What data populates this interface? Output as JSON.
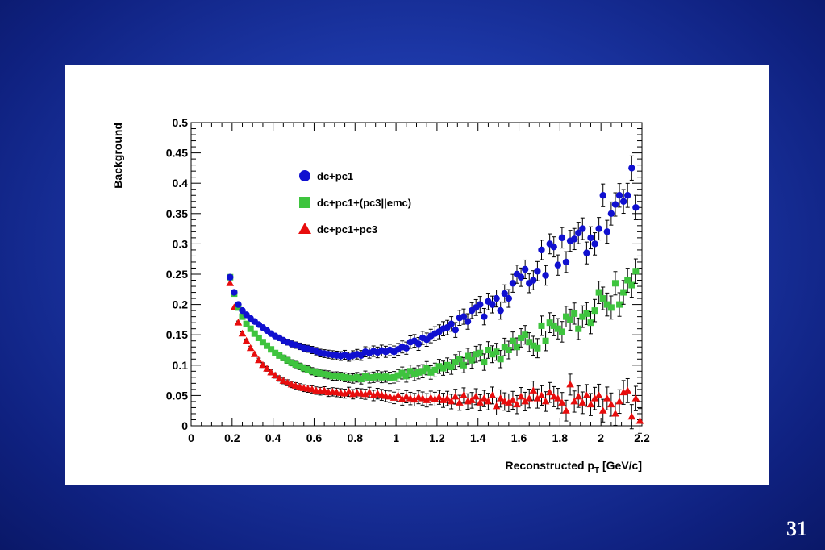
{
  "slide": {
    "page_number": "31"
  },
  "chart_data": {
    "type": "scatter",
    "xlabel": "Reconstructed p",
    "xlabel_sub": "T",
    "xlabel_unit": " [GeV/c]",
    "ylabel": "Background",
    "xlim": [
      0,
      2.2
    ],
    "ylim": [
      0,
      0.5
    ],
    "x_ticks": [
      "0",
      "0.2",
      "0.4",
      "0.6",
      "0.8",
      "1",
      "1.2",
      "1.4",
      "1.6",
      "1.8",
      "2",
      "2.2"
    ],
    "y_ticks": [
      "0",
      "0.05",
      "0.1",
      "0.15",
      "0.2",
      "0.25",
      "0.3",
      "0.35",
      "0.4",
      "0.45",
      "0.5"
    ],
    "grid": false,
    "legend_placement": "top-left",
    "series": [
      {
        "name": "dc+pc1",
        "marker": "circle",
        "color": "#1010d0",
        "points": [
          [
            0.19,
            0.245
          ],
          [
            0.21,
            0.22
          ],
          [
            0.23,
            0.2
          ],
          [
            0.25,
            0.19
          ],
          [
            0.27,
            0.183
          ],
          [
            0.29,
            0.177
          ],
          [
            0.31,
            0.172
          ],
          [
            0.33,
            0.167
          ],
          [
            0.35,
            0.162
          ],
          [
            0.37,
            0.157
          ],
          [
            0.39,
            0.152
          ],
          [
            0.41,
            0.148
          ],
          [
            0.43,
            0.145
          ],
          [
            0.45,
            0.141
          ],
          [
            0.47,
            0.138
          ],
          [
            0.49,
            0.135
          ],
          [
            0.51,
            0.133
          ],
          [
            0.53,
            0.131
          ],
          [
            0.55,
            0.128
          ],
          [
            0.57,
            0.127
          ],
          [
            0.59,
            0.125
          ],
          [
            0.61,
            0.123
          ],
          [
            0.63,
            0.12
          ],
          [
            0.65,
            0.119
          ],
          [
            0.67,
            0.118
          ],
          [
            0.69,
            0.117
          ],
          [
            0.71,
            0.116
          ],
          [
            0.73,
            0.115
          ],
          [
            0.75,
            0.117
          ],
          [
            0.77,
            0.114
          ],
          [
            0.79,
            0.116
          ],
          [
            0.81,
            0.118
          ],
          [
            0.83,
            0.116
          ],
          [
            0.85,
            0.122
          ],
          [
            0.87,
            0.12
          ],
          [
            0.89,
            0.123
          ],
          [
            0.91,
            0.121
          ],
          [
            0.93,
            0.124
          ],
          [
            0.95,
            0.122
          ],
          [
            0.97,
            0.125
          ],
          [
            0.99,
            0.122
          ],
          [
            1.01,
            0.126
          ],
          [
            1.03,
            0.13
          ],
          [
            1.05,
            0.128
          ],
          [
            1.07,
            0.138
          ],
          [
            1.09,
            0.14
          ],
          [
            1.11,
            0.135
          ],
          [
            1.13,
            0.145
          ],
          [
            1.15,
            0.142
          ],
          [
            1.17,
            0.148
          ],
          [
            1.19,
            0.152
          ],
          [
            1.21,
            0.155
          ],
          [
            1.23,
            0.16
          ],
          [
            1.25,
            0.162
          ],
          [
            1.27,
            0.168
          ],
          [
            1.29,
            0.158
          ],
          [
            1.31,
            0.178
          ],
          [
            1.33,
            0.18
          ],
          [
            1.35,
            0.172
          ],
          [
            1.37,
            0.19
          ],
          [
            1.39,
            0.195
          ],
          [
            1.41,
            0.2
          ],
          [
            1.43,
            0.18
          ],
          [
            1.45,
            0.205
          ],
          [
            1.47,
            0.2
          ],
          [
            1.49,
            0.21
          ],
          [
            1.51,
            0.19
          ],
          [
            1.53,
            0.218
          ],
          [
            1.55,
            0.21
          ],
          [
            1.57,
            0.235
          ],
          [
            1.59,
            0.25
          ],
          [
            1.61,
            0.245
          ],
          [
            1.63,
            0.258
          ],
          [
            1.65,
            0.235
          ],
          [
            1.67,
            0.24
          ],
          [
            1.69,
            0.255
          ],
          [
            1.71,
            0.29
          ],
          [
            1.73,
            0.248
          ],
          [
            1.75,
            0.3
          ],
          [
            1.77,
            0.295
          ],
          [
            1.79,
            0.265
          ],
          [
            1.81,
            0.31
          ],
          [
            1.83,
            0.27
          ],
          [
            1.85,
            0.305
          ],
          [
            1.87,
            0.308
          ],
          [
            1.89,
            0.318
          ],
          [
            1.91,
            0.325
          ],
          [
            1.93,
            0.285
          ],
          [
            1.95,
            0.31
          ],
          [
            1.97,
            0.3
          ],
          [
            1.99,
            0.325
          ],
          [
            2.01,
            0.38
          ],
          [
            2.03,
            0.32
          ],
          [
            2.05,
            0.35
          ],
          [
            2.07,
            0.365
          ],
          [
            2.09,
            0.38
          ],
          [
            2.11,
            0.37
          ],
          [
            2.13,
            0.38
          ],
          [
            2.15,
            0.425
          ],
          [
            2.17,
            0.36
          ]
        ]
      },
      {
        "name": "dc+pc1+(pc3||emc)",
        "marker": "square",
        "color": "#3ec43e",
        "points": [
          [
            0.19,
            0.245
          ],
          [
            0.21,
            0.218
          ],
          [
            0.23,
            0.195
          ],
          [
            0.25,
            0.18
          ],
          [
            0.27,
            0.168
          ],
          [
            0.29,
            0.16
          ],
          [
            0.31,
            0.152
          ],
          [
            0.33,
            0.145
          ],
          [
            0.35,
            0.138
          ],
          [
            0.37,
            0.132
          ],
          [
            0.39,
            0.126
          ],
          [
            0.41,
            0.12
          ],
          [
            0.43,
            0.116
          ],
          [
            0.45,
            0.112
          ],
          [
            0.47,
            0.108
          ],
          [
            0.49,
            0.104
          ],
          [
            0.51,
            0.101
          ],
          [
            0.53,
            0.098
          ],
          [
            0.55,
            0.095
          ],
          [
            0.57,
            0.093
          ],
          [
            0.59,
            0.09
          ],
          [
            0.61,
            0.088
          ],
          [
            0.63,
            0.087
          ],
          [
            0.65,
            0.085
          ],
          [
            0.67,
            0.084
          ],
          [
            0.69,
            0.082
          ],
          [
            0.71,
            0.082
          ],
          [
            0.73,
            0.081
          ],
          [
            0.75,
            0.08
          ],
          [
            0.77,
            0.079
          ],
          [
            0.79,
            0.078
          ],
          [
            0.81,
            0.08
          ],
          [
            0.83,
            0.077
          ],
          [
            0.85,
            0.082
          ],
          [
            0.87,
            0.079
          ],
          [
            0.89,
            0.08
          ],
          [
            0.91,
            0.082
          ],
          [
            0.93,
            0.08
          ],
          [
            0.95,
            0.081
          ],
          [
            0.97,
            0.079
          ],
          [
            0.99,
            0.08
          ],
          [
            1.01,
            0.083
          ],
          [
            1.03,
            0.087
          ],
          [
            1.05,
            0.082
          ],
          [
            1.07,
            0.09
          ],
          [
            1.09,
            0.085
          ],
          [
            1.11,
            0.088
          ],
          [
            1.13,
            0.09
          ],
          [
            1.15,
            0.095
          ],
          [
            1.17,
            0.088
          ],
          [
            1.19,
            0.092
          ],
          [
            1.21,
            0.098
          ],
          [
            1.23,
            0.095
          ],
          [
            1.25,
            0.1
          ],
          [
            1.27,
            0.097
          ],
          [
            1.29,
            0.105
          ],
          [
            1.31,
            0.11
          ],
          [
            1.33,
            0.1
          ],
          [
            1.35,
            0.115
          ],
          [
            1.37,
            0.108
          ],
          [
            1.39,
            0.118
          ],
          [
            1.41,
            0.12
          ],
          [
            1.43,
            0.105
          ],
          [
            1.45,
            0.125
          ],
          [
            1.47,
            0.118
          ],
          [
            1.49,
            0.122
          ],
          [
            1.51,
            0.11
          ],
          [
            1.53,
            0.13
          ],
          [
            1.55,
            0.125
          ],
          [
            1.57,
            0.14
          ],
          [
            1.59,
            0.13
          ],
          [
            1.61,
            0.145
          ],
          [
            1.63,
            0.15
          ],
          [
            1.65,
            0.138
          ],
          [
            1.67,
            0.132
          ],
          [
            1.69,
            0.128
          ],
          [
            1.71,
            0.165
          ],
          [
            1.73,
            0.14
          ],
          [
            1.75,
            0.17
          ],
          [
            1.77,
            0.165
          ],
          [
            1.79,
            0.16
          ],
          [
            1.81,
            0.155
          ],
          [
            1.83,
            0.18
          ],
          [
            1.85,
            0.175
          ],
          [
            1.87,
            0.185
          ],
          [
            1.89,
            0.16
          ],
          [
            1.91,
            0.18
          ],
          [
            1.93,
            0.185
          ],
          [
            1.95,
            0.17
          ],
          [
            1.97,
            0.19
          ],
          [
            1.99,
            0.22
          ],
          [
            2.01,
            0.21
          ],
          [
            2.03,
            0.2
          ],
          [
            2.05,
            0.195
          ],
          [
            2.07,
            0.235
          ],
          [
            2.09,
            0.2
          ],
          [
            2.11,
            0.22
          ],
          [
            2.13,
            0.24
          ],
          [
            2.15,
            0.232
          ],
          [
            2.17,
            0.255
          ]
        ]
      },
      {
        "name": "dc+pc1+pc3",
        "marker": "triangle",
        "color": "#e80d0d",
        "points": [
          [
            0.19,
            0.235
          ],
          [
            0.21,
            0.195
          ],
          [
            0.23,
            0.17
          ],
          [
            0.25,
            0.152
          ],
          [
            0.27,
            0.14
          ],
          [
            0.29,
            0.128
          ],
          [
            0.31,
            0.118
          ],
          [
            0.33,
            0.108
          ],
          [
            0.35,
            0.1
          ],
          [
            0.37,
            0.094
          ],
          [
            0.39,
            0.088
          ],
          [
            0.41,
            0.083
          ],
          [
            0.43,
            0.078
          ],
          [
            0.45,
            0.074
          ],
          [
            0.47,
            0.071
          ],
          [
            0.49,
            0.068
          ],
          [
            0.51,
            0.066
          ],
          [
            0.53,
            0.064
          ],
          [
            0.55,
            0.062
          ],
          [
            0.57,
            0.061
          ],
          [
            0.59,
            0.06
          ],
          [
            0.61,
            0.058
          ],
          [
            0.63,
            0.057
          ],
          [
            0.65,
            0.058
          ],
          [
            0.67,
            0.055
          ],
          [
            0.69,
            0.056
          ],
          [
            0.71,
            0.055
          ],
          [
            0.73,
            0.054
          ],
          [
            0.75,
            0.053
          ],
          [
            0.77,
            0.056
          ],
          [
            0.79,
            0.052
          ],
          [
            0.81,
            0.054
          ],
          [
            0.83,
            0.053
          ],
          [
            0.85,
            0.052
          ],
          [
            0.87,
            0.055
          ],
          [
            0.89,
            0.05
          ],
          [
            0.91,
            0.053
          ],
          [
            0.93,
            0.051
          ],
          [
            0.95,
            0.049
          ],
          [
            0.97,
            0.048
          ],
          [
            0.99,
            0.046
          ],
          [
            1.01,
            0.05
          ],
          [
            1.03,
            0.044
          ],
          [
            1.05,
            0.048
          ],
          [
            1.07,
            0.045
          ],
          [
            1.09,
            0.043
          ],
          [
            1.11,
            0.047
          ],
          [
            1.13,
            0.045
          ],
          [
            1.15,
            0.042
          ],
          [
            1.17,
            0.046
          ],
          [
            1.19,
            0.044
          ],
          [
            1.21,
            0.047
          ],
          [
            1.23,
            0.042
          ],
          [
            1.25,
            0.045
          ],
          [
            1.27,
            0.04
          ],
          [
            1.29,
            0.048
          ],
          [
            1.31,
            0.038
          ],
          [
            1.33,
            0.05
          ],
          [
            1.35,
            0.04
          ],
          [
            1.37,
            0.042
          ],
          [
            1.39,
            0.048
          ],
          [
            1.41,
            0.038
          ],
          [
            1.43,
            0.045
          ],
          [
            1.45,
            0.04
          ],
          [
            1.47,
            0.05
          ],
          [
            1.49,
            0.032
          ],
          [
            1.51,
            0.045
          ],
          [
            1.53,
            0.04
          ],
          [
            1.55,
            0.038
          ],
          [
            1.57,
            0.042
          ],
          [
            1.59,
            0.035
          ],
          [
            1.61,
            0.048
          ],
          [
            1.63,
            0.04
          ],
          [
            1.65,
            0.045
          ],
          [
            1.67,
            0.058
          ],
          [
            1.69,
            0.045
          ],
          [
            1.71,
            0.05
          ],
          [
            1.73,
            0.04
          ],
          [
            1.75,
            0.055
          ],
          [
            1.77,
            0.048
          ],
          [
            1.79,
            0.045
          ],
          [
            1.81,
            0.038
          ],
          [
            1.83,
            0.025
          ],
          [
            1.85,
            0.068
          ],
          [
            1.87,
            0.04
          ],
          [
            1.89,
            0.048
          ],
          [
            1.91,
            0.038
          ],
          [
            1.93,
            0.05
          ],
          [
            1.95,
            0.035
          ],
          [
            1.97,
            0.045
          ],
          [
            1.99,
            0.05
          ],
          [
            2.01,
            0.025
          ],
          [
            2.03,
            0.045
          ],
          [
            2.05,
            0.035
          ],
          [
            2.07,
            0.02
          ],
          [
            2.09,
            0.04
          ],
          [
            2.11,
            0.055
          ],
          [
            2.13,
            0.058
          ],
          [
            2.15,
            0.015
          ],
          [
            2.17,
            0.045
          ],
          [
            2.19,
            0.008
          ]
        ]
      }
    ]
  }
}
